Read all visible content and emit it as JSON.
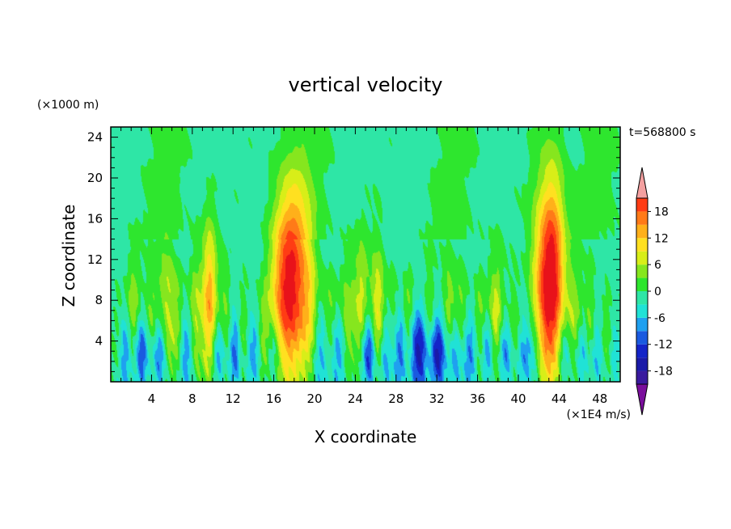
{
  "chart_data": {
    "type": "heatmap",
    "title": "vertical velocity",
    "xlabel": "X coordinate",
    "ylabel": "Z coordinate",
    "x_unit": "(×1E4 m/s)",
    "y_unit": "(×1000 m)",
    "time_label": "t=568800 s",
    "xlim": [
      0,
      50
    ],
    "ylim": [
      0,
      25
    ],
    "x_ticks": [
      4,
      8,
      12,
      16,
      20,
      24,
      28,
      32,
      36,
      40,
      44,
      48
    ],
    "y_ticks": [
      4,
      8,
      12,
      16,
      20,
      24
    ],
    "colorbar": {
      "levels": [
        -21,
        -18,
        -15,
        -12,
        -9,
        -6,
        -3,
        0,
        3,
        6,
        9,
        12,
        15,
        18,
        21
      ],
      "tick_labels": [
        18,
        12,
        6,
        0,
        -6,
        -12,
        -18
      ],
      "colors": [
        "#7a0e9c",
        "#3a1a9e",
        "#1a1aa8",
        "#1424c8",
        "#1a5ae0",
        "#1fa0f0",
        "#20e2d6",
        "#2ee6a6",
        "#2ee62e",
        "#86e61e",
        "#d8ee18",
        "#ffe020",
        "#ffb01a",
        "#ff7a18",
        "#ff3c14",
        "#e8121a",
        "#f4a0a0"
      ]
    },
    "features": {
      "updrafts": [
        {
          "x": 0.8,
          "w": 0.4,
          "amp": 4,
          "top": 10
        },
        {
          "x": 2.2,
          "w": 0.5,
          "amp": 8,
          "top": 13
        },
        {
          "x": 4.0,
          "w": 0.5,
          "amp": 6,
          "top": 12
        },
        {
          "x": 5.5,
          "w": 0.6,
          "amp": 9,
          "top": 15
        },
        {
          "x": 6.6,
          "w": 0.4,
          "amp": 5,
          "top": 12
        },
        {
          "x": 8.3,
          "w": 0.5,
          "amp": 7,
          "top": 14
        },
        {
          "x": 9.7,
          "w": 0.5,
          "amp": 15,
          "top": 17
        },
        {
          "x": 11.2,
          "w": 0.4,
          "amp": 6,
          "top": 12
        },
        {
          "x": 13.0,
          "w": 0.4,
          "amp": 5,
          "top": 11
        },
        {
          "x": 15.0,
          "w": 0.4,
          "amp": 5,
          "top": 10
        },
        {
          "x": 17.0,
          "w": 1.0,
          "amp": 16,
          "top": 20
        },
        {
          "x": 18.3,
          "w": 1.0,
          "amp": 14,
          "top": 22
        },
        {
          "x": 19.6,
          "w": 0.6,
          "amp": 7,
          "top": 15
        },
        {
          "x": 21.5,
          "w": 0.5,
          "amp": 6,
          "top": 12
        },
        {
          "x": 23.2,
          "w": 0.5,
          "amp": 6,
          "top": 13
        },
        {
          "x": 24.6,
          "w": 0.5,
          "amp": 9,
          "top": 15
        },
        {
          "x": 26.2,
          "w": 0.5,
          "amp": 12,
          "top": 14
        },
        {
          "x": 27.6,
          "w": 0.4,
          "amp": 5,
          "top": 12
        },
        {
          "x": 29.2,
          "w": 0.4,
          "amp": 6,
          "top": 12
        },
        {
          "x": 31.3,
          "w": 0.4,
          "amp": 6,
          "top": 12
        },
        {
          "x": 33.2,
          "w": 0.5,
          "amp": 8,
          "top": 13
        },
        {
          "x": 34.4,
          "w": 0.5,
          "amp": 7,
          "top": 12
        },
        {
          "x": 36.2,
          "w": 0.4,
          "amp": 5,
          "top": 12
        },
        {
          "x": 37.8,
          "w": 0.5,
          "amp": 9,
          "top": 13
        },
        {
          "x": 39.6,
          "w": 0.4,
          "amp": 5,
          "top": 11
        },
        {
          "x": 42.5,
          "w": 0.9,
          "amp": 15,
          "top": 21
        },
        {
          "x": 43.5,
          "w": 0.8,
          "amp": 17,
          "top": 23
        },
        {
          "x": 45.5,
          "w": 0.5,
          "amp": 7,
          "top": 13
        },
        {
          "x": 47.0,
          "w": 0.4,
          "amp": 6,
          "top": 12
        },
        {
          "x": 48.6,
          "w": 0.4,
          "amp": 5,
          "top": 10
        }
      ],
      "downdrafts": [
        {
          "x": 1.4,
          "w": 0.5,
          "amp": 10,
          "top": 8
        },
        {
          "x": 3.0,
          "w": 0.5,
          "amp": 12,
          "top": 7
        },
        {
          "x": 4.8,
          "w": 0.5,
          "amp": 11,
          "top": 7
        },
        {
          "x": 7.4,
          "w": 0.5,
          "amp": 9,
          "top": 7
        },
        {
          "x": 10.6,
          "w": 0.5,
          "amp": 8,
          "top": 6
        },
        {
          "x": 12.2,
          "w": 0.4,
          "amp": 9,
          "top": 7
        },
        {
          "x": 14.0,
          "w": 0.5,
          "amp": 8,
          "top": 6
        },
        {
          "x": 16.0,
          "w": 0.5,
          "amp": 7,
          "top": 6
        },
        {
          "x": 20.6,
          "w": 0.6,
          "amp": 8,
          "top": 8
        },
        {
          "x": 22.3,
          "w": 0.5,
          "amp": 9,
          "top": 7
        },
        {
          "x": 25.3,
          "w": 0.5,
          "amp": 14,
          "top": 7
        },
        {
          "x": 27.0,
          "w": 0.5,
          "amp": 9,
          "top": 7
        },
        {
          "x": 28.4,
          "w": 0.5,
          "amp": 10,
          "top": 7
        },
        {
          "x": 30.2,
          "w": 0.6,
          "amp": 15,
          "top": 8
        },
        {
          "x": 32.1,
          "w": 0.6,
          "amp": 15,
          "top": 7
        },
        {
          "x": 33.8,
          "w": 0.5,
          "amp": 11,
          "top": 7
        },
        {
          "x": 35.2,
          "w": 0.5,
          "amp": 10,
          "top": 7
        },
        {
          "x": 37.0,
          "w": 0.4,
          "amp": 9,
          "top": 6
        },
        {
          "x": 38.7,
          "w": 0.5,
          "amp": 8,
          "top": 6
        },
        {
          "x": 40.6,
          "w": 0.5,
          "amp": 7,
          "top": 6
        },
        {
          "x": 41.6,
          "w": 0.5,
          "amp": 6,
          "top": 6
        },
        {
          "x": 44.5,
          "w": 0.5,
          "amp": 7,
          "top": 6
        },
        {
          "x": 46.3,
          "w": 0.5,
          "amp": 6,
          "top": 6
        },
        {
          "x": 47.8,
          "w": 0.5,
          "amp": 6,
          "top": 6
        },
        {
          "x": 49.5,
          "w": 0.4,
          "amp": 5,
          "top": 5
        }
      ]
    }
  }
}
